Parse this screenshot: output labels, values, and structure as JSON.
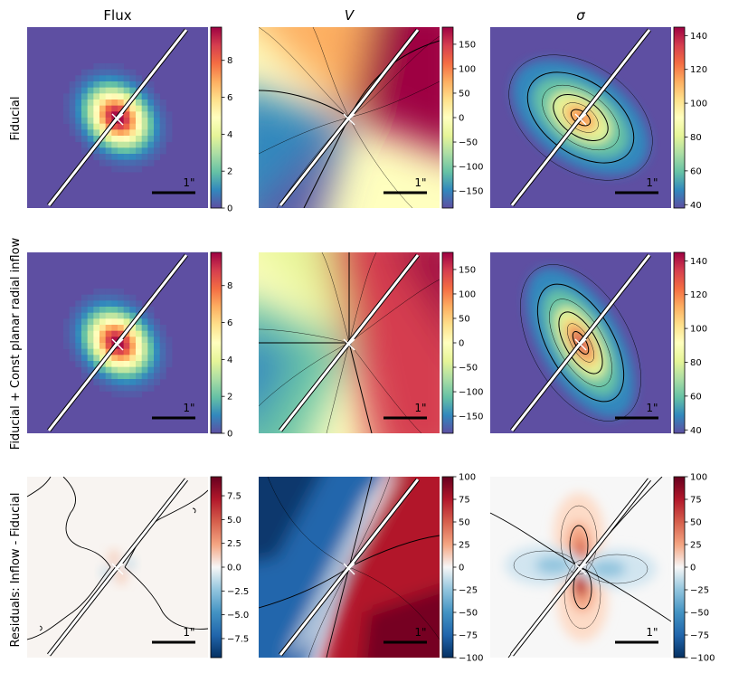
{
  "chart_data": {
    "type": "heatmap",
    "column_titles": [
      "Flux",
      "V",
      "σ"
    ],
    "row_labels": [
      "Fiducial",
      "Fiducial + Const planar radial inflow",
      "Residuals: Inflow - Fiducial"
    ],
    "scale_bar_label": "1\"",
    "panels": [
      {
        "row": 0,
        "col": 0,
        "quantity": "Flux",
        "colormap": "Spectral_r",
        "vmin": 0,
        "vmax": 9.8,
        "cbar_ticks": [
          "0",
          "2",
          "4",
          "6",
          "8"
        ],
        "tick_values": [
          0,
          2,
          4,
          6,
          8
        ],
        "contours": false
      },
      {
        "row": 0,
        "col": 1,
        "quantity": "V",
        "colormap": "Spectral_r",
        "vmin": -185,
        "vmax": 185,
        "cbar_ticks": [
          "−150",
          "−100",
          "−50",
          "0",
          "50",
          "100",
          "150"
        ],
        "tick_values": [
          -150,
          -100,
          -50,
          0,
          50,
          100,
          150
        ],
        "contours": true
      },
      {
        "row": 0,
        "col": 2,
        "quantity": "σ",
        "colormap": "Spectral_r",
        "vmin": 38,
        "vmax": 145,
        "cbar_ticks": [
          "40",
          "60",
          "80",
          "100",
          "120",
          "140"
        ],
        "tick_values": [
          40,
          60,
          80,
          100,
          120,
          140
        ],
        "contours": true
      },
      {
        "row": 1,
        "col": 0,
        "quantity": "Flux",
        "colormap": "Spectral_r",
        "vmin": 0,
        "vmax": 9.8,
        "cbar_ticks": [
          "0",
          "2",
          "4",
          "6",
          "8"
        ],
        "tick_values": [
          0,
          2,
          4,
          6,
          8
        ],
        "contours": false
      },
      {
        "row": 1,
        "col": 1,
        "quantity": "V",
        "colormap": "Spectral_r",
        "vmin": -185,
        "vmax": 185,
        "cbar_ticks": [
          "−150",
          "−100",
          "−50",
          "0",
          "50",
          "100",
          "150"
        ],
        "tick_values": [
          -150,
          -100,
          -50,
          0,
          50,
          100,
          150
        ],
        "contours": true
      },
      {
        "row": 1,
        "col": 2,
        "quantity": "σ",
        "colormap": "Spectral_r",
        "vmin": 38,
        "vmax": 145,
        "cbar_ticks": [
          "40",
          "60",
          "80",
          "100",
          "120",
          "140"
        ],
        "tick_values": [
          40,
          60,
          80,
          100,
          120,
          140
        ],
        "contours": true
      },
      {
        "row": 2,
        "col": 0,
        "quantity": "Flux residual",
        "colormap": "RdBu_r",
        "vmin": -9.5,
        "vmax": 9.5,
        "cbar_ticks": [
          "−7.5",
          "−5.0",
          "−2.5",
          "0.0",
          "2.5",
          "5.0",
          "7.5"
        ],
        "tick_values": [
          -7.5,
          -5,
          -2.5,
          0,
          2.5,
          5,
          7.5
        ],
        "contours": true
      },
      {
        "row": 2,
        "col": 1,
        "quantity": "V residual",
        "colormap": "RdBu_r",
        "vmin": -100,
        "vmax": 100,
        "cbar_ticks": [
          "−100",
          "−75",
          "−50",
          "−25",
          "0",
          "25",
          "50",
          "75",
          "100"
        ],
        "tick_values": [
          -100,
          -75,
          -50,
          -25,
          0,
          25,
          50,
          75,
          100
        ],
        "contours": true
      },
      {
        "row": 2,
        "col": 2,
        "quantity": "σ residual",
        "colormap": "RdBu_r",
        "vmin": -100,
        "vmax": 100,
        "cbar_ticks": [
          "−100",
          "−75",
          "−50",
          "−25",
          "0",
          "25",
          "50",
          "75",
          "100"
        ],
        "tick_values": [
          -100,
          -75,
          -50,
          -25,
          0,
          25,
          50,
          75,
          100
        ],
        "contours": true
      }
    ]
  }
}
